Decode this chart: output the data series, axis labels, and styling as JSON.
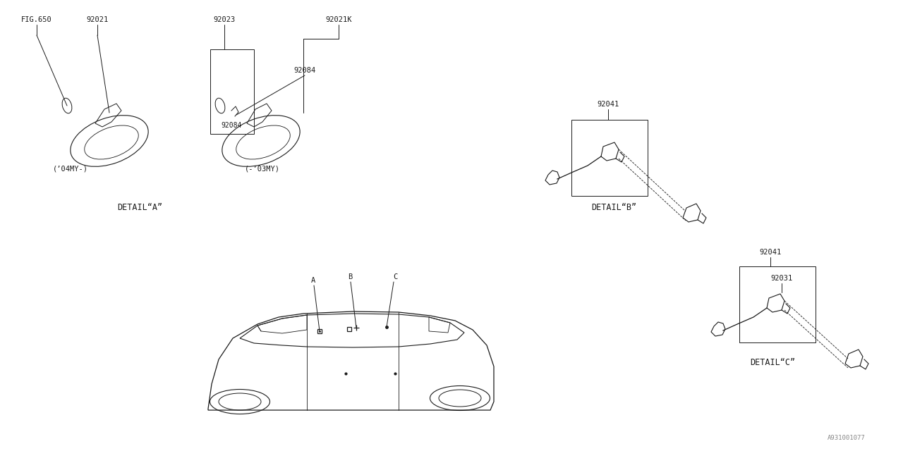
{
  "bg_color": "#ffffff",
  "line_color": "#1a1a1a",
  "text_color": "#1a1a1a",
  "watermark": "A931001077",
  "labels": {
    "fig650": "FIG.650",
    "l92021": "92021",
    "l92023": "92023",
    "l92021K": "92021K",
    "l92084a": "92084",
    "l92084b": "92084",
    "l92041a": "92041",
    "l92041b": "92041",
    "l92031": "92031",
    "cap1": "(’04MY-)",
    "cap2": "(-’03MY)",
    "detA": "DETAIL“A”",
    "detB": "DETAIL“B”",
    "detC": "DETAIL“C”",
    "ptA": "A",
    "ptB": "B",
    "ptC": "C"
  },
  "fs_small": 7.5,
  "fs_med": 8.5,
  "ff": "monospace"
}
